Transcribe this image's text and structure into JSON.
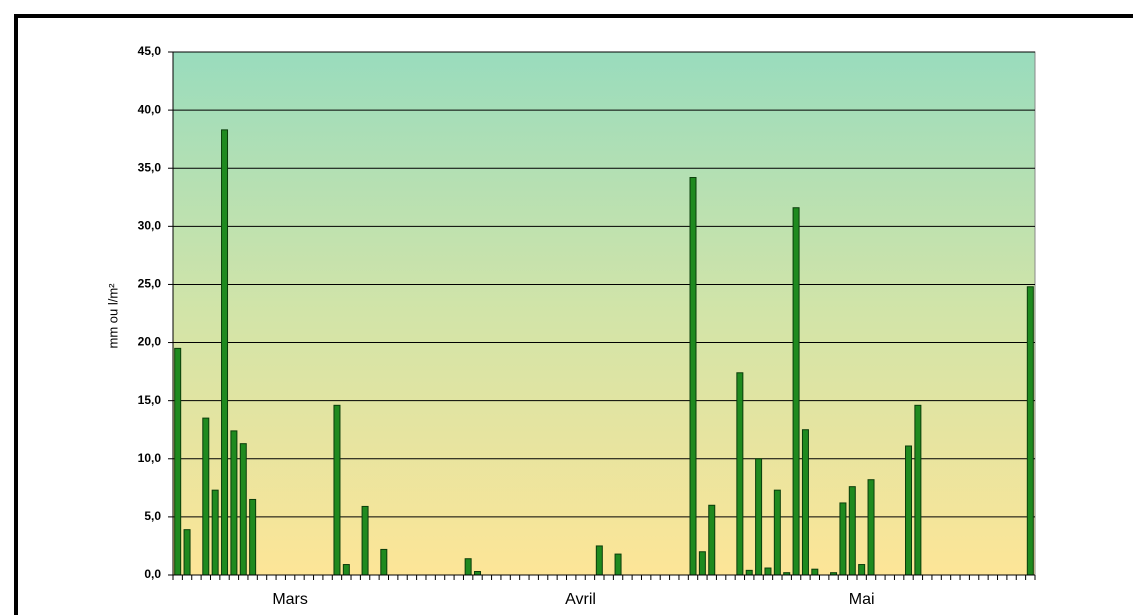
{
  "chart_data": {
    "type": "bar",
    "y_label": "mm ou l/m²",
    "categories": [
      null,
      null,
      null,
      null,
      null,
      null,
      null,
      null,
      null,
      null,
      null,
      null,
      "Mars",
      null,
      null,
      null,
      null,
      null,
      null,
      null,
      null,
      null,
      null,
      null,
      null,
      null,
      null,
      null,
      null,
      null,
      null,
      null,
      null,
      null,
      null,
      null,
      null,
      null,
      null,
      null,
      null,
      null,
      null,
      "Avril",
      null,
      null,
      null,
      null,
      null,
      null,
      null,
      null,
      null,
      null,
      null,
      null,
      null,
      null,
      null,
      null,
      null,
      null,
      null,
      null,
      null,
      null,
      null,
      null,
      null,
      null,
      null,
      null,
      null,
      "Mai",
      null,
      null,
      null,
      null,
      null,
      null,
      null,
      null,
      null,
      null,
      null,
      null,
      null,
      null,
      null,
      null,
      null,
      null
    ],
    "values": [
      19.5,
      3.9,
      0,
      13.5,
      7.3,
      38.3,
      12.4,
      11.3,
      6.5,
      0,
      0,
      0,
      0,
      0,
      0,
      0,
      0,
      14.6,
      0.9,
      0,
      5.9,
      0,
      2.2,
      0,
      0,
      0,
      0,
      0,
      0,
      0,
      0,
      1.4,
      0.3,
      0,
      0,
      0,
      0,
      0,
      0,
      0,
      0,
      0,
      0,
      0,
      0,
      2.5,
      0,
      1.8,
      0,
      0,
      0,
      0,
      0,
      0,
      0,
      34.2,
      2,
      6,
      0,
      0,
      17.4,
      0.4,
      10,
      0.6,
      7.3,
      0.2,
      31.6,
      12.5,
      0.5,
      0,
      0.2,
      6.2,
      7.6,
      0.9,
      8.2,
      0,
      0,
      0,
      11.1,
      14.6,
      0,
      0,
      0,
      0,
      0,
      0,
      0,
      0,
      0,
      0,
      0,
      24.8
    ],
    "color": "#1f8a1f",
    "ylim": [
      0,
      45
    ],
    "yticks": [
      {
        "value": 0,
        "label": "0,0"
      },
      {
        "value": 5,
        "label": "5,0"
      },
      {
        "value": 10,
        "label": "10,0"
      },
      {
        "value": 15,
        "label": "15,0"
      },
      {
        "value": 20,
        "label": "20,0"
      },
      {
        "value": 25,
        "label": "25,0"
      },
      {
        "value": 30,
        "label": "30,0"
      },
      {
        "value": 35,
        "label": "35,0"
      },
      {
        "value": 40,
        "label": "40,0"
      },
      {
        "value": 45,
        "label": "45,0"
      }
    ],
    "grid": true
  }
}
